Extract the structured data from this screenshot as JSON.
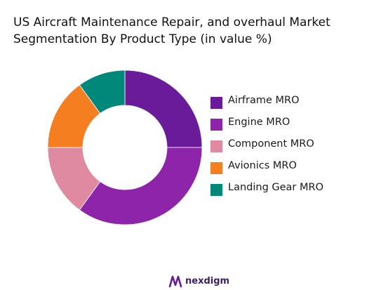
{
  "chart_data": {
    "type": "pie",
    "donut": true,
    "title_lines": [
      "US Aircraft Maintenance Repair, and overhaul Market",
      "Segmentation By Product Type (in value %)"
    ],
    "categories": [
      "Airframe MRO",
      "Engine MRO",
      "Component MRO",
      "Avionics MRO",
      "Landing Gear MRO"
    ],
    "values": [
      25,
      35,
      15,
      15,
      10
    ],
    "colors": [
      "#6a1b9a",
      "#8e24aa",
      "#e08aa2",
      "#f57f20",
      "#00897b"
    ],
    "legend_position": "right"
  },
  "brand": {
    "name": "nexdigm",
    "logo_icon": "nexdigm-logo-icon"
  }
}
